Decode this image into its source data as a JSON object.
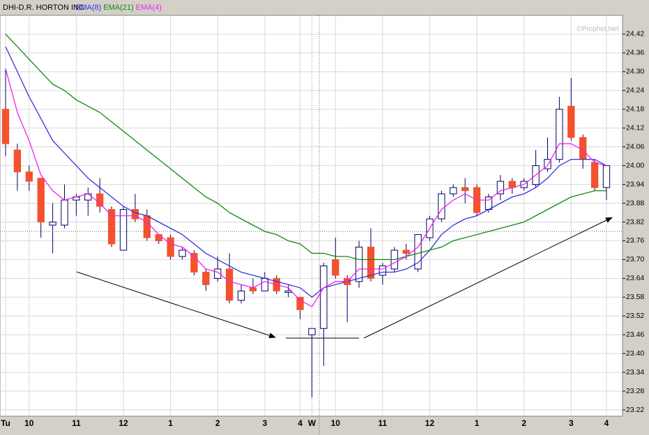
{
  "chart_data": {
    "type": "candlestick",
    "title": "DHI-D.R. HORTON INC",
    "watermark": "©Prophet.Net",
    "categories": [
      "Tu",
      null,
      "10",
      null,
      null,
      null,
      "11",
      null,
      null,
      null,
      "12",
      null,
      null,
      null,
      "1",
      null,
      null,
      null,
      "2",
      null,
      null,
      null,
      "3",
      null,
      null,
      "4",
      "W",
      null,
      "10",
      null,
      null,
      null,
      "11",
      null,
      null,
      null,
      "12",
      null,
      null,
      null,
      "1",
      null,
      null,
      null,
      "2",
      null,
      null,
      null,
      "3",
      null,
      null,
      "4"
    ],
    "open": [
      24.18,
      24.05,
      23.98,
      23.96,
      23.81,
      23.81,
      23.89,
      23.89,
      23.91,
      23.86,
      23.73,
      23.86,
      23.84,
      23.78,
      23.77,
      23.71,
      23.72,
      23.66,
      23.64,
      23.67,
      23.57,
      23.61,
      23.6,
      23.64,
      23.595,
      23.58,
      23.46,
      23.48,
      23.7,
      23.64,
      23.63,
      23.74,
      23.65,
      23.67,
      23.73,
      23.67,
      23.77,
      23.83,
      23.91,
      23.93,
      23.93,
      23.86,
      23.91,
      23.95,
      23.93,
      23.94,
      23.99,
      24.02,
      24.19,
      24.09,
      24.01,
      23.93
    ],
    "high": [
      24.31,
      24.07,
      24.0,
      23.96,
      23.88,
      23.94,
      23.91,
      23.93,
      23.96,
      23.87,
      23.87,
      23.91,
      23.86,
      23.78,
      23.78,
      23.74,
      23.73,
      23.67,
      23.71,
      23.72,
      23.62,
      23.64,
      23.66,
      23.65,
      23.62,
      23.58,
      23.48,
      23.69,
      23.77,
      23.65,
      23.76,
      23.8,
      23.69,
      23.74,
      23.75,
      23.78,
      23.84,
      23.92,
      23.94,
      23.96,
      23.94,
      23.91,
      23.97,
      23.96,
      23.96,
      24.05,
      24.09,
      24.22,
      24.28,
      24.1,
      24.02,
      24.0
    ],
    "low": [
      24.03,
      23.92,
      23.92,
      23.77,
      23.72,
      23.8,
      23.84,
      23.84,
      23.85,
      23.74,
      23.73,
      23.82,
      23.76,
      23.75,
      23.7,
      23.7,
      23.65,
      23.6,
      23.63,
      23.56,
      23.56,
      23.59,
      23.6,
      23.59,
      23.58,
      23.51,
      23.26,
      23.36,
      23.64,
      23.5,
      23.61,
      23.63,
      23.62,
      23.66,
      23.7,
      23.66,
      23.76,
      23.82,
      23.9,
      23.88,
      23.84,
      23.85,
      23.89,
      23.91,
      23.92,
      23.93,
      23.98,
      24.01,
      24.08,
      23.99,
      23.92,
      23.89
    ],
    "close": [
      24.07,
      23.98,
      23.95,
      23.82,
      23.82,
      23.89,
      23.9,
      23.91,
      23.87,
      23.75,
      23.86,
      23.83,
      23.77,
      23.76,
      23.71,
      23.73,
      23.66,
      23.62,
      23.67,
      23.57,
      23.6,
      23.6,
      23.64,
      23.6,
      23.6,
      23.54,
      23.48,
      23.68,
      23.65,
      23.62,
      23.74,
      23.64,
      23.68,
      23.73,
      23.72,
      23.78,
      23.83,
      23.91,
      23.93,
      23.92,
      23.85,
      23.9,
      23.95,
      23.93,
      23.95,
      24.0,
      24.02,
      24.18,
      24.09,
      24.02,
      23.93,
      24.0
    ],
    "up_color": "#ffffff",
    "down_color": "#f4512c",
    "candle_edge": "#000066",
    "series": [
      {
        "name": "EMA(8)",
        "color": "#3333dd",
        "values": [
          24.38,
          24.3,
          24.22,
          24.15,
          24.08,
          24.04,
          24.0,
          23.96,
          23.93,
          23.9,
          23.87,
          23.85,
          23.84,
          23.82,
          23.8,
          23.78,
          23.75,
          23.72,
          23.7,
          23.68,
          23.66,
          23.65,
          23.64,
          23.63,
          23.62,
          23.61,
          23.58,
          23.61,
          23.62,
          23.63,
          23.64,
          23.65,
          23.66,
          23.66,
          23.67,
          23.69,
          23.73,
          23.78,
          23.81,
          23.83,
          23.84,
          23.86,
          23.88,
          23.9,
          23.91,
          23.93,
          23.96,
          24.0,
          24.02,
          24.02,
          24.02,
          24.0
        ]
      },
      {
        "name": "EMA(21)",
        "color": "#118811",
        "values": [
          24.42,
          24.38,
          24.34,
          24.3,
          24.26,
          24.24,
          24.21,
          24.19,
          24.17,
          24.14,
          24.11,
          24.08,
          24.05,
          24.02,
          23.99,
          23.96,
          23.93,
          23.9,
          23.88,
          23.85,
          23.83,
          23.81,
          23.79,
          23.78,
          23.76,
          23.75,
          23.72,
          23.72,
          23.71,
          23.71,
          23.7,
          23.7,
          23.7,
          23.7,
          23.71,
          23.72,
          23.73,
          23.74,
          23.76,
          23.77,
          23.78,
          23.79,
          23.8,
          23.81,
          23.82,
          23.84,
          23.86,
          23.88,
          23.9,
          23.91,
          23.92,
          23.92
        ]
      },
      {
        "name": "EMA(4)",
        "color": "#ee22ee",
        "values": [
          24.31,
          24.17,
          24.08,
          23.97,
          23.92,
          23.89,
          23.9,
          23.91,
          23.88,
          23.84,
          23.84,
          23.84,
          23.82,
          23.78,
          23.75,
          23.74,
          23.71,
          23.67,
          23.66,
          23.63,
          23.62,
          23.61,
          23.63,
          23.62,
          23.61,
          23.57,
          23.55,
          23.61,
          23.63,
          23.63,
          23.67,
          23.67,
          23.67,
          23.69,
          23.71,
          23.74,
          23.8,
          23.86,
          23.89,
          23.91,
          23.89,
          23.89,
          23.92,
          23.93,
          23.94,
          23.97,
          24.0,
          24.07,
          24.07,
          24.05,
          24.01,
          24.0
        ]
      }
    ],
    "ylim": [
      23.2,
      24.48
    ],
    "yticks": [
      23.22,
      23.28,
      23.34,
      {
        "value": 23.4,
        "label": "23.40"
      },
      23.46,
      23.52,
      23.58,
      23.64,
      {
        "value": 23.7,
        "label": "23.70"
      },
      23.76,
      23.82,
      23.88,
      23.94,
      {
        "value": 24,
        "label": "24.00"
      },
      24.06,
      24.12,
      24.18,
      24.24,
      {
        "value": 24.3,
        "label": "24.30"
      },
      24.36,
      24.42
    ],
    "grid": true
  }
}
